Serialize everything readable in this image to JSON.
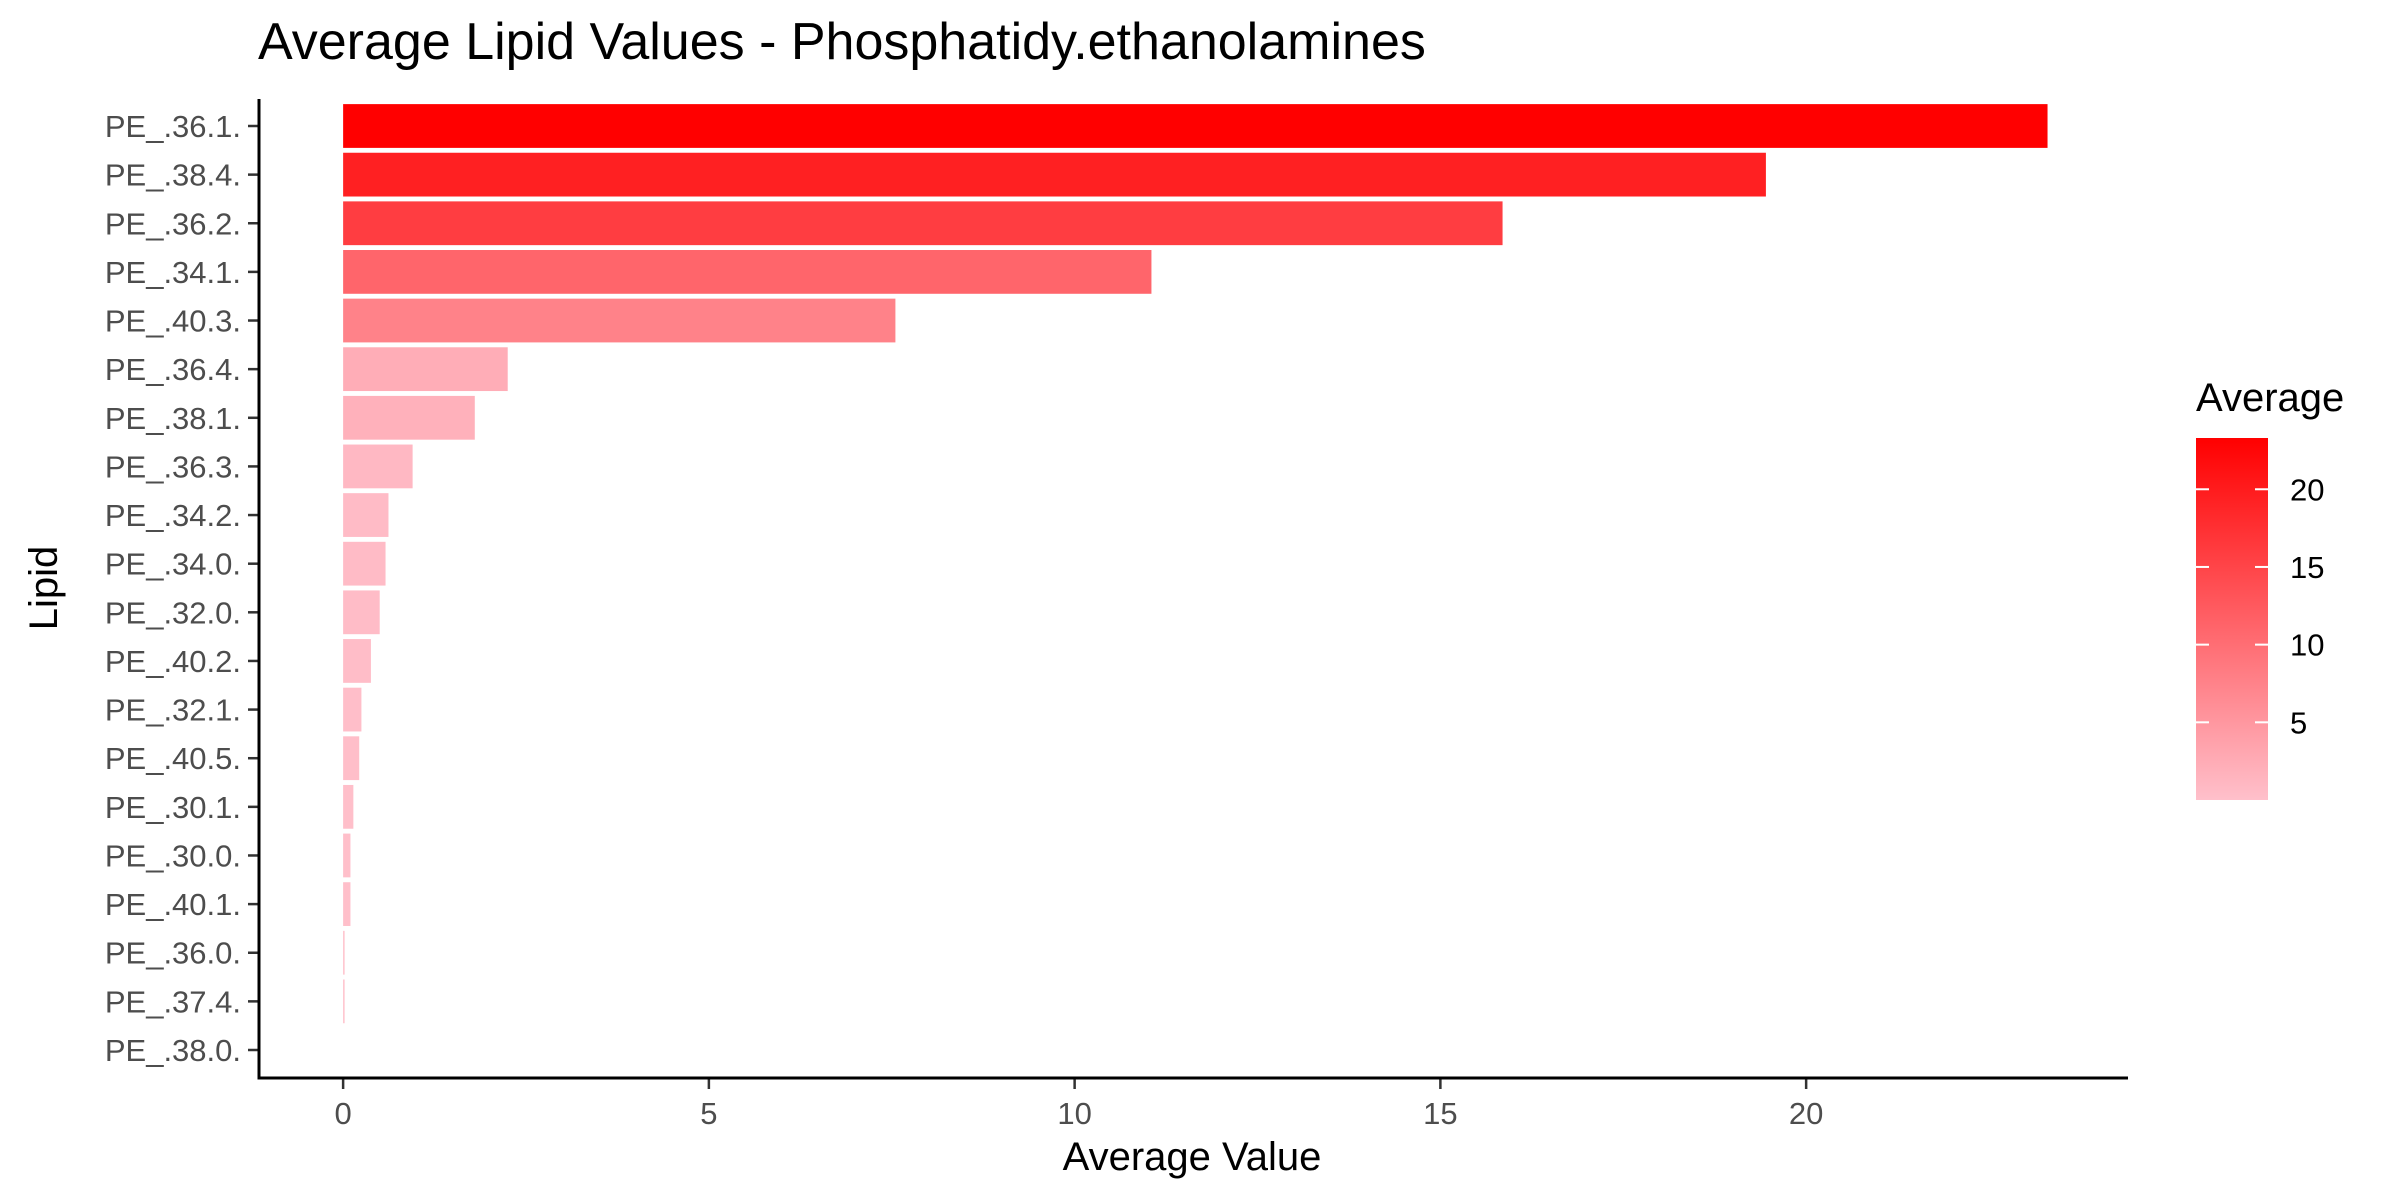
{
  "chart_data": {
    "type": "bar",
    "orientation": "horizontal",
    "title": "Average Lipid Values - Phosphatidy.ethanolamines",
    "xlabel": "Average Value",
    "ylabel": "Lipid",
    "xlim": [
      -1.15,
      24.4
    ],
    "xticks": [
      0,
      5,
      10,
      15,
      20
    ],
    "grid": false,
    "legend": {
      "title": "Average",
      "placement": "right",
      "type": "colorbar",
      "range": [
        0,
        23.3
      ],
      "ticks": [
        5,
        10,
        15,
        20
      ],
      "low_color": "#ffc0cb",
      "high_color": "#ff0000"
    },
    "categories": [
      "PE_.36.1.",
      "PE_.38.4.",
      "PE_.36.2.",
      "PE_.34.1.",
      "PE_.40.3.",
      "PE_.36.4.",
      "PE_.38.1.",
      "PE_.36.3.",
      "PE_.34.2.",
      "PE_.34.0.",
      "PE_.32.0.",
      "PE_.40.2.",
      "PE_.32.1.",
      "PE_.40.5.",
      "PE_.30.1.",
      "PE_.30.0.",
      "PE_.40.1.",
      "PE_.36.0.",
      "PE_.37.4.",
      "PE_.38.0."
    ],
    "values": [
      23.3,
      19.45,
      15.85,
      11.05,
      7.55,
      2.25,
      1.8,
      0.95,
      0.62,
      0.58,
      0.5,
      0.38,
      0.25,
      0.22,
      0.14,
      0.1,
      0.1,
      0.02,
      0.02,
      0.0
    ]
  }
}
